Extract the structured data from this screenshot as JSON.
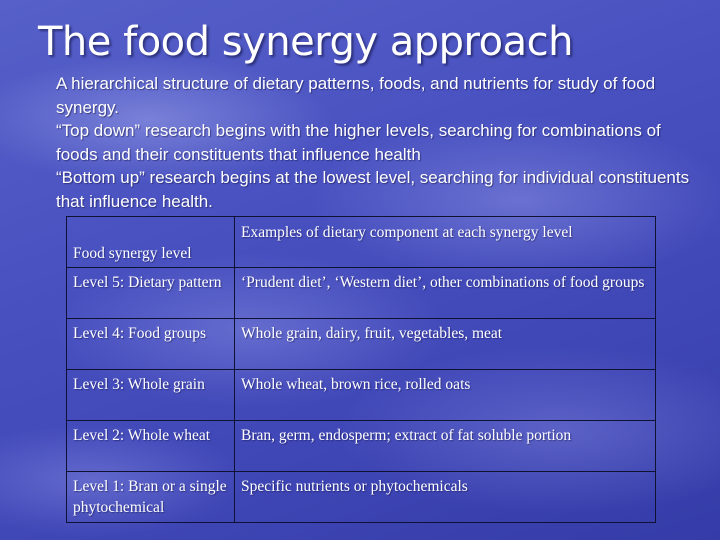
{
  "slide": {
    "title": "The food synergy approach",
    "intro": [
      "A hierarchical structure of dietary patterns, foods, and nutrients for study of food synergy.",
      "“Top down” research begins with the higher levels, searching for combinations of foods and their constituents that influence health",
      "“Bottom up” research begins at the lowest level, searching for individual constituents that influence health."
    ]
  },
  "table": {
    "headers": [
      "Food synergy level",
      "Examples of dietary component at each synergy level"
    ],
    "rows": [
      [
        "Level 5: Dietary pattern",
        "‘Prudent diet’, ‘Western diet’, other combinations of food groups"
      ],
      [
        "Level 4:  Food groups",
        "Whole grain, dairy, fruit, vegetables, meat"
      ],
      [
        "Level 3:  Whole grain",
        "Whole wheat, brown rice, rolled oats"
      ],
      [
        "Level 2:  Whole wheat",
        "Bran, germ, endosperm; extract of fat soluble portion"
      ],
      [
        "Level 1:  Bran or a single phytochemical",
        "Specific nutrients or phytochemicals"
      ]
    ]
  },
  "colors": {
    "background": "#4850c0",
    "text": "#ffffff",
    "table_border": "#0f1230"
  }
}
